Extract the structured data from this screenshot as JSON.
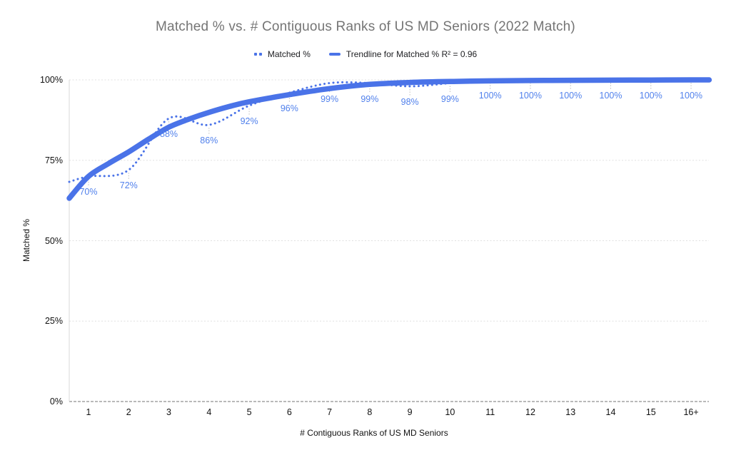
{
  "title": "Matched % vs. # Contiguous Ranks of US MD Seniors (2022 Match)",
  "legend": {
    "series_label": "Matched %",
    "trendline_label": "Trendline for Matched % R² = 0.96"
  },
  "colors": {
    "series_line": "#4a73e8",
    "trendline": "#4a73e8",
    "data_label": "#5181ec",
    "title_text": "#757575",
    "axis_text": "#111111",
    "gridline": "#e0e0e0",
    "baseline": "#a3a3a3",
    "axis_line": "#d9d9d9",
    "leader_line": "#bfbfbf"
  },
  "chart_data": {
    "type": "line",
    "title": "Matched % vs. # Contiguous Ranks of US MD Seniors (2022 Match)",
    "xlabel": "# Contiguous Ranks of US MD Seniors",
    "ylabel": "Matched %",
    "categories": [
      "1",
      "2",
      "3",
      "4",
      "5",
      "6",
      "7",
      "8",
      "9",
      "10",
      "11",
      "12",
      "13",
      "14",
      "15",
      "16+"
    ],
    "series": [
      {
        "name": "Matched %",
        "style": "dotted",
        "values": [
          70,
          72,
          88,
          86,
          92,
          96,
          99,
          99,
          98,
          99,
          100,
          100,
          100,
          100,
          100,
          100
        ],
        "data_labels": [
          "70%",
          "72%",
          "88%",
          "86%",
          "92%",
          "96%",
          "99%",
          "99%",
          "98%",
          "99%",
          "100%",
          "100%",
          "100%",
          "100%",
          "100%",
          "100%"
        ]
      },
      {
        "name": "Trendline for Matched % R² = 0.96",
        "style": "solid-thick",
        "r_squared": 0.96
      }
    ],
    "y_ticks": [
      {
        "label": "0%",
        "value": 0
      },
      {
        "label": "25%",
        "value": 25
      },
      {
        "label": "50%",
        "value": 50
      },
      {
        "label": "75%",
        "value": 75
      },
      {
        "label": "100%",
        "value": 100
      }
    ],
    "ylim": [
      0,
      100
    ],
    "grid": true,
    "legend_position": "top"
  }
}
